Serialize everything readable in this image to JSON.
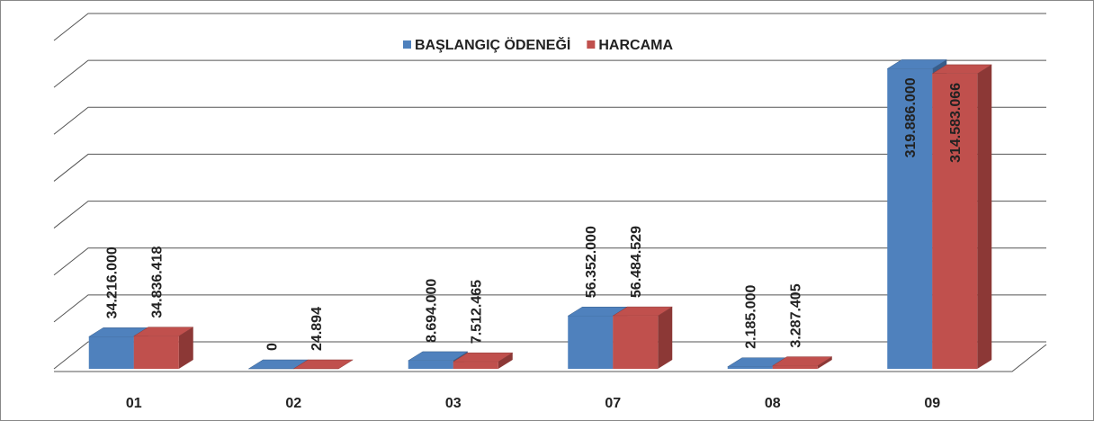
{
  "chart_data": {
    "type": "bar3d",
    "categories": [
      "01",
      "02",
      "03",
      "07",
      "08",
      "09"
    ],
    "series": [
      {
        "name": "BAŞLANGIÇ ÖDENEĞİ",
        "color": "#4f81bd",
        "side": "#385d8a",
        "values": [
          34216000,
          0,
          8694000,
          56352000,
          2185000,
          319886000
        ],
        "value_labels": [
          "34.216.000",
          "0",
          "8.694.000",
          "56.352.000",
          "2.185.000",
          "319.886.000"
        ]
      },
      {
        "name": "HARCAMA",
        "color": "#c0504d",
        "side": "#8c3836",
        "values": [
          34836418,
          24894,
          7512465,
          56484529,
          3287405,
          314583066
        ],
        "value_labels": [
          "34.836.418",
          "24.894",
          "7.512.465",
          "56.484.529",
          "3.287.405",
          "314.583.066"
        ]
      }
    ],
    "ylim": [
      0,
      350000000
    ],
    "yticks": [
      0,
      50000000,
      100000000,
      150000000,
      200000000,
      250000000,
      300000000,
      350000000
    ],
    "grid": true,
    "legend": "top"
  }
}
